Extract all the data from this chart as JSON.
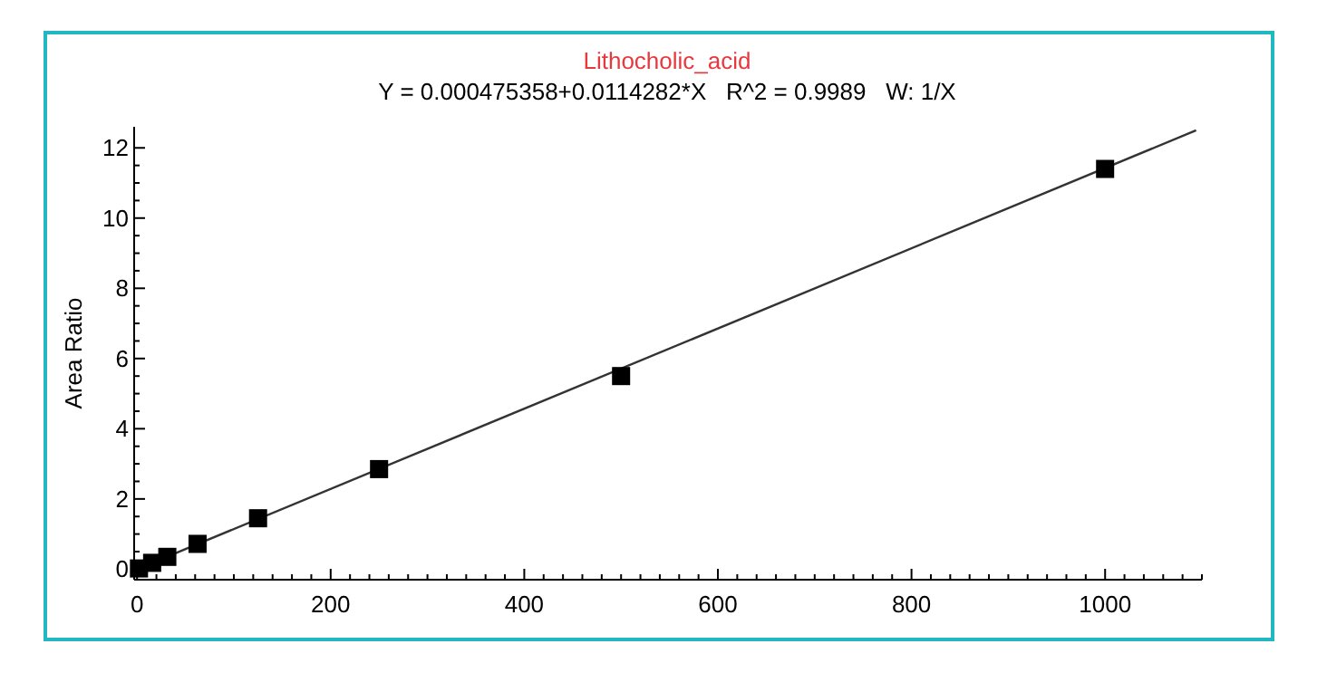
{
  "chart_data": {
    "type": "scatter",
    "title": "Lithocholic_acid",
    "subtitle": "Y = 0.000475358+0.0114282*X   R^2 = 0.9989   W: 1/X",
    "ylabel": "Area Ratio",
    "x": [
      2,
      15.6,
      31.25,
      62.5,
      125,
      250,
      500,
      1000
    ],
    "series": [
      {
        "color": "#000000",
        "marker": "square",
        "values": [
          0.02,
          0.18,
          0.35,
          0.72,
          1.45,
          2.85,
          5.5,
          11.4
        ]
      },
      {
        "type": "line",
        "color": "#333333",
        "marker": "none",
        "line_style": "solid",
        "x": [
          0,
          1094
        ],
        "values": [
          0,
          12.5
        ]
      }
    ],
    "xlim": [
      -3,
      1100
    ],
    "ylim": [
      -0.3,
      12.6
    ],
    "xticks": [
      0,
      {
        "value": 20,
        "label": null
      },
      {
        "value": 40,
        "label": null
      },
      {
        "value": 60,
        "label": null
      },
      {
        "value": 80,
        "label": null
      },
      {
        "value": 100,
        "label": null
      },
      {
        "value": 120,
        "label": null
      },
      {
        "value": 140,
        "label": null
      },
      {
        "value": 160,
        "label": null
      },
      {
        "value": 180,
        "label": null
      },
      200,
      {
        "value": 220,
        "label": null
      },
      {
        "value": 240,
        "label": null
      },
      {
        "value": 260,
        "label": null
      },
      {
        "value": 280,
        "label": null
      },
      {
        "value": 300,
        "label": null
      },
      {
        "value": 320,
        "label": null
      },
      {
        "value": 340,
        "label": null
      },
      {
        "value": 360,
        "label": null
      },
      {
        "value": 380,
        "label": null
      },
      400,
      {
        "value": 420,
        "label": null
      },
      {
        "value": 440,
        "label": null
      },
      {
        "value": 460,
        "label": null
      },
      {
        "value": 480,
        "label": null
      },
      {
        "value": 500,
        "label": null
      },
      {
        "value": 520,
        "label": null
      },
      {
        "value": 540,
        "label": null
      },
      {
        "value": 560,
        "label": null
      },
      {
        "value": 580,
        "label": null
      },
      600,
      {
        "value": 620,
        "label": null
      },
      {
        "value": 640,
        "label": null
      },
      {
        "value": 660,
        "label": null
      },
      {
        "value": 680,
        "label": null
      },
      {
        "value": 700,
        "label": null
      },
      {
        "value": 720,
        "label": null
      },
      {
        "value": 740,
        "label": null
      },
      {
        "value": 760,
        "label": null
      },
      {
        "value": 780,
        "label": null
      },
      800,
      {
        "value": 820,
        "label": null
      },
      {
        "value": 840,
        "label": null
      },
      {
        "value": 860,
        "label": null
      },
      {
        "value": 880,
        "label": null
      },
      {
        "value": 900,
        "label": null
      },
      {
        "value": 920,
        "label": null
      },
      {
        "value": 940,
        "label": null
      },
      {
        "value": 960,
        "label": null
      },
      {
        "value": 980,
        "label": null
      },
      1000,
      {
        "value": 1020,
        "label": null
      },
      {
        "value": 1040,
        "label": null
      },
      {
        "value": 1060,
        "label": null
      },
      {
        "value": 1080,
        "label": null
      },
      {
        "value": 1100,
        "label": null
      }
    ],
    "yticks": [
      0,
      {
        "value": 0.5,
        "label": null
      },
      {
        "value": 1,
        "label": null
      },
      {
        "value": 1.5,
        "label": null
      },
      2,
      {
        "value": 2.5,
        "label": null
      },
      {
        "value": 3,
        "label": null
      },
      {
        "value": 3.5,
        "label": null
      },
      4,
      {
        "value": 4.5,
        "label": null
      },
      {
        "value": 5,
        "label": null
      },
      {
        "value": 5.5,
        "label": null
      },
      6,
      {
        "value": 6.5,
        "label": null
      },
      {
        "value": 7,
        "label": null
      },
      {
        "value": 7.5,
        "label": null
      },
      8,
      {
        "value": 8.5,
        "label": null
      },
      {
        "value": 9,
        "label": null
      },
      {
        "value": 9.5,
        "label": null
      },
      10,
      {
        "value": 10.5,
        "label": null
      },
      {
        "value": 11,
        "label": null
      },
      {
        "value": 11.5,
        "label": null
      },
      12
    ],
    "grid": false
  }
}
